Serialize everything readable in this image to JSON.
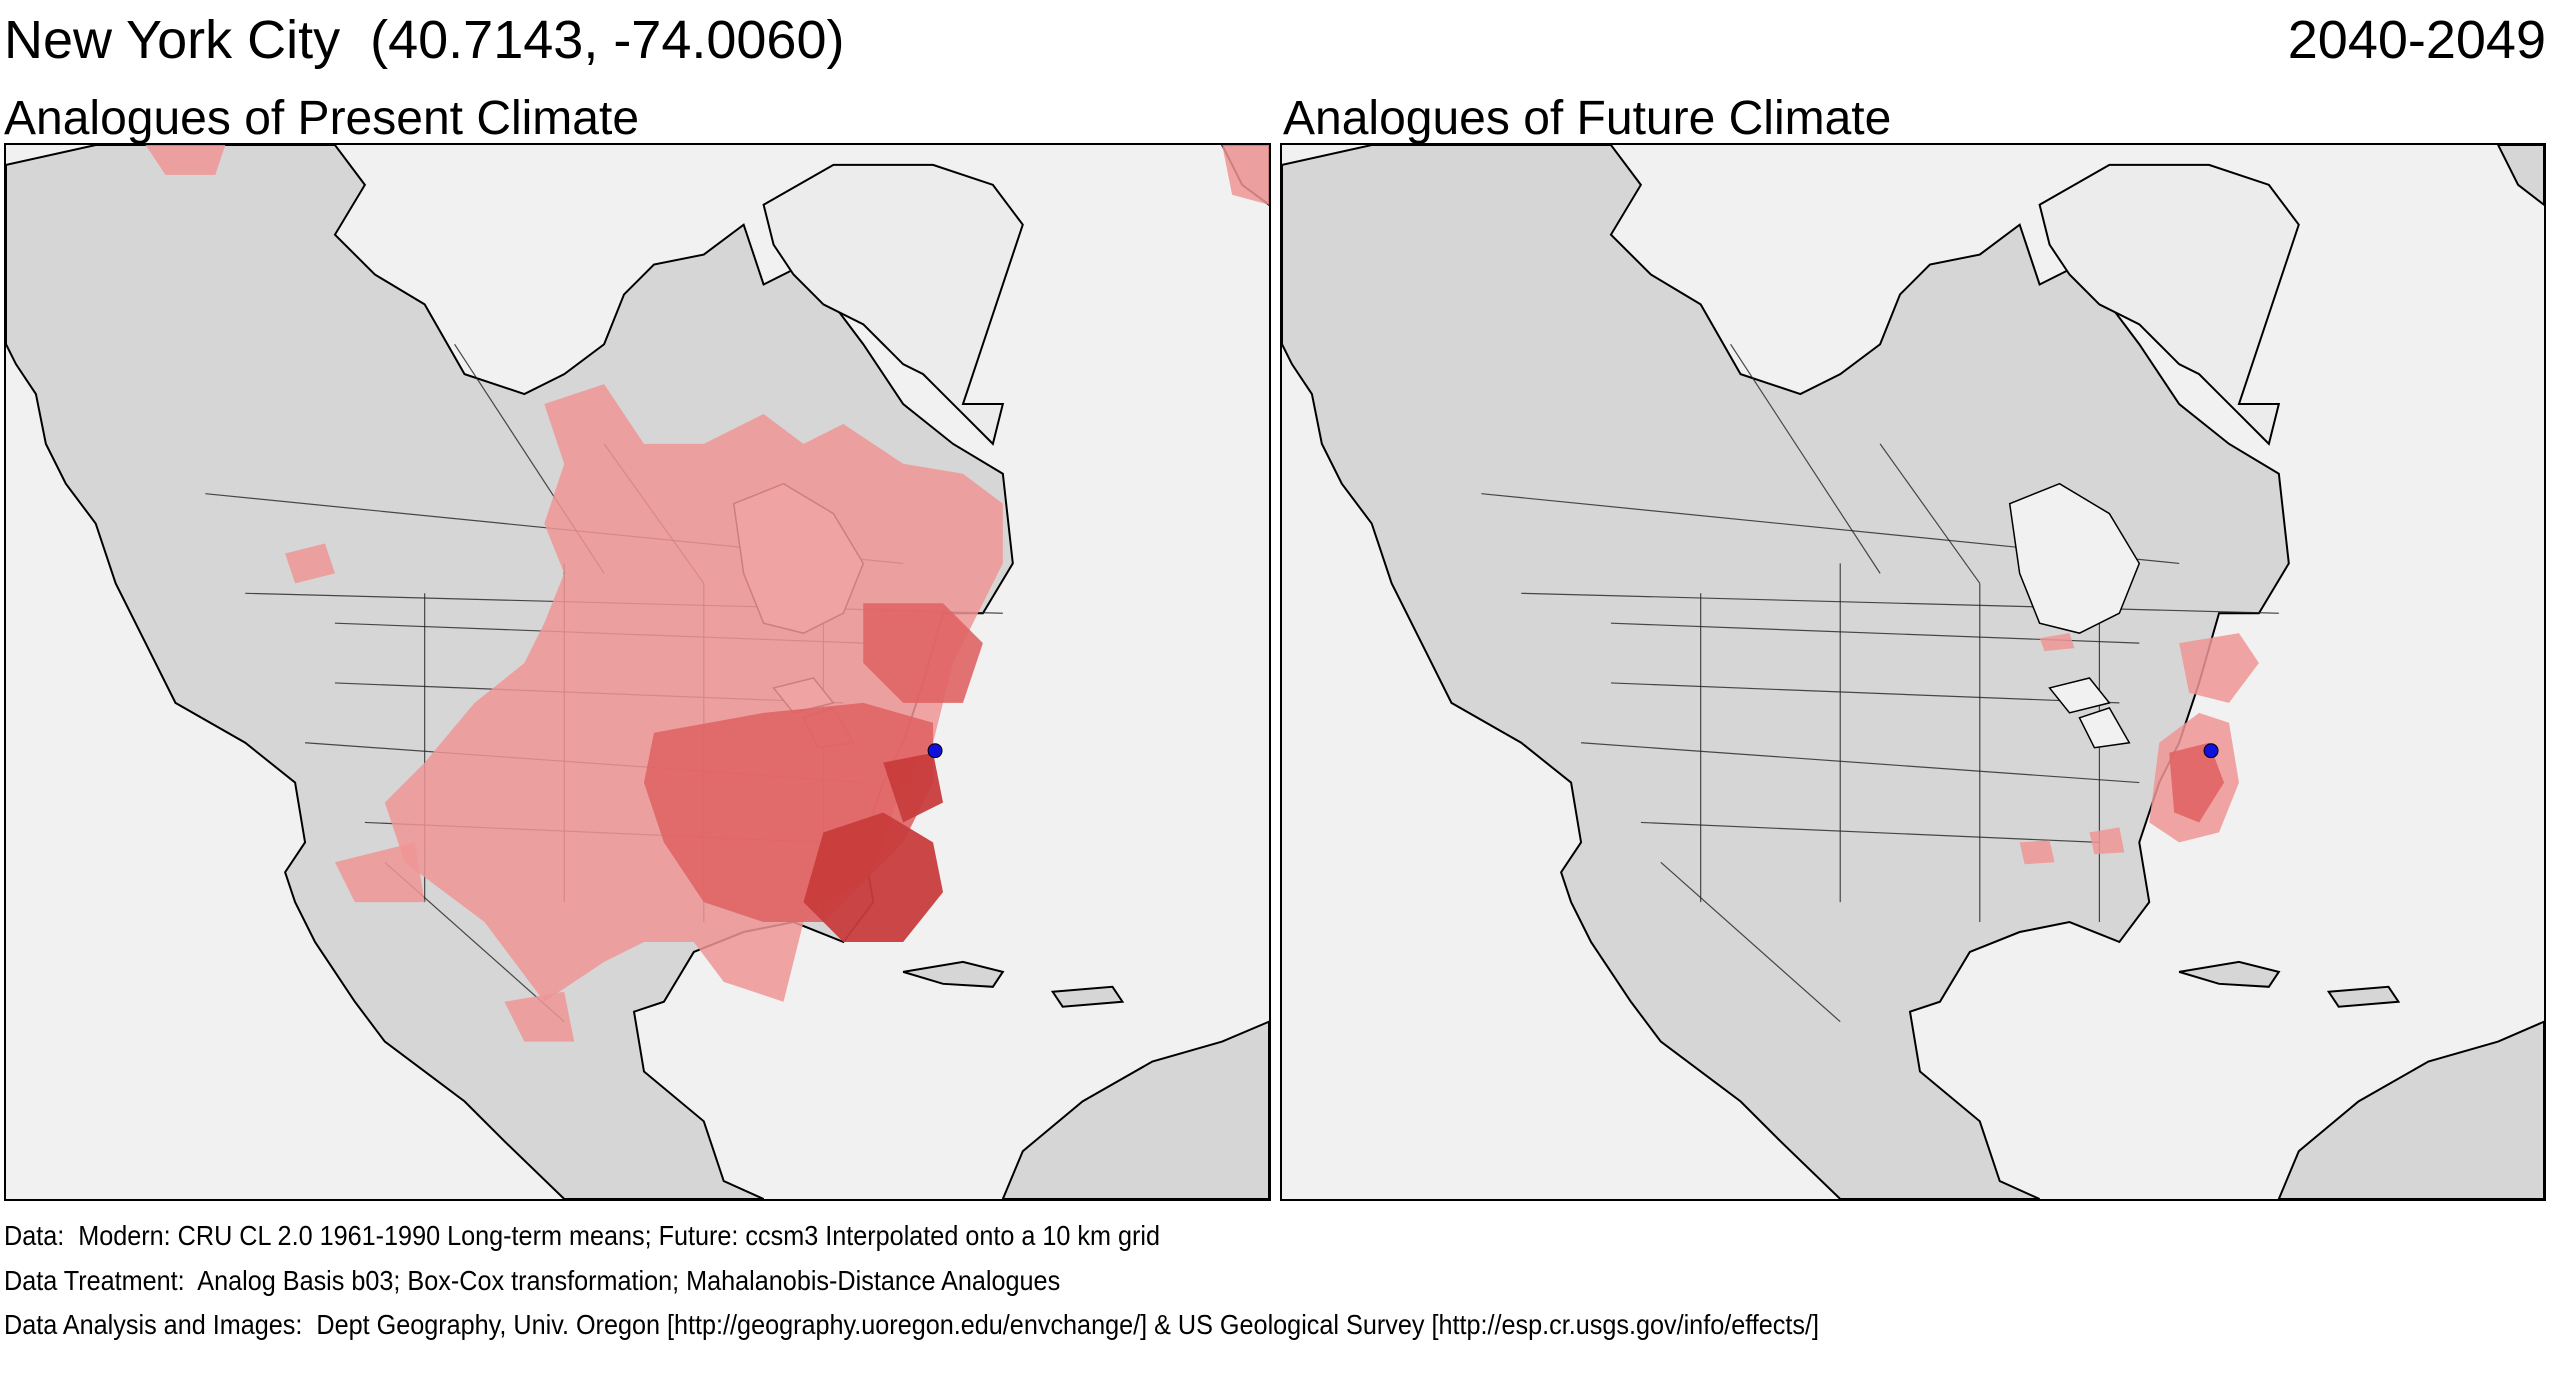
{
  "header": {
    "city": "New York City  (40.7143, -74.0060)",
    "period": "2040-2049"
  },
  "panels": {
    "left_title": "Analogues of Present Climate",
    "right_title": "Analogues of Future Climate"
  },
  "footer": {
    "line1": "Data:  Modern: CRU CL 2.0 1961-1990 Long-term means; Future: ccsm3 Interpolated onto a 10 km grid",
    "line2": "Data Treatment:  Analog Basis b03; Box-Cox transformation; Mahalanobis-Distance Analogues",
    "line3": "Data Analysis and Images:  Dept Geography, Univ. Oregon [http://geography.uoregon.edu/envchange/] & US Geological Survey [http://esp.cr.usgs.gov/info/effects/]"
  },
  "colors": {
    "ocean": "#f1f1f1",
    "land": "#d6d6d6",
    "analog_light": "#f09595",
    "analog_medium": "#e06464",
    "analog_dark": "#c83c3c",
    "location_marker": "#1111dd"
  }
}
